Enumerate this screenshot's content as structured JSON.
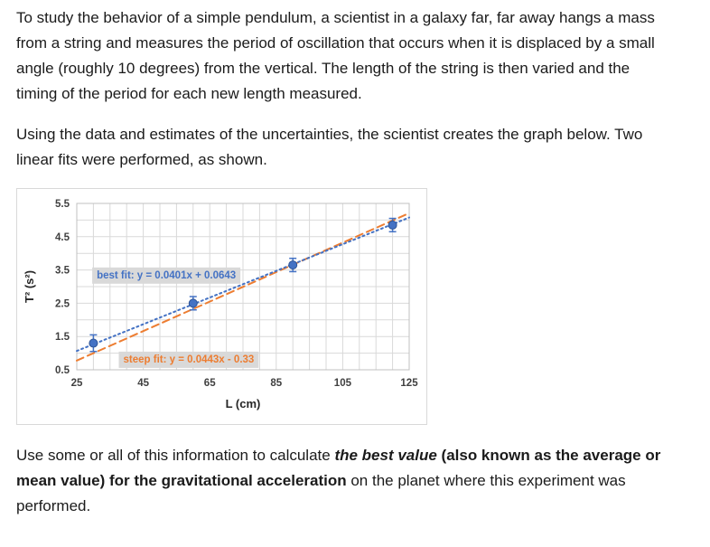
{
  "document": {
    "paragraph1": "To study the behavior of a simple pendulum, a scientist in a galaxy far, far away hangs a mass from a string and measures the period of oscillation that occurs when it is displaced by a small angle (roughly 10 degrees) from the vertical.  The length of the string is then varied and the timing of the period for each new length measured.",
    "paragraph2": "Using the data and estimates of the uncertainties, the scientist creates the graph below. Two linear fits were performed, as shown.",
    "paragraph3": {
      "part1": "Use some or all of this information to calculate ",
      "part2": "the best value",
      "part3": " (also known as the average or mean value) for the gravitational acceleration",
      "part4": " on the planet where this experiment was performed."
    }
  },
  "chart_data": {
    "type": "scatter",
    "title": "",
    "xlabel": "L (cm)",
    "ylabel": "T² (s²)",
    "xlim": [
      25,
      125
    ],
    "ylim": [
      0.5,
      5.5
    ],
    "xticks": [
      25,
      45,
      65,
      85,
      105,
      125
    ],
    "yticks": [
      0.5,
      1.5,
      2.5,
      3.5,
      4.5,
      5.5
    ],
    "x_minor_step": 5,
    "y_minor_step": 0.5,
    "grid": true,
    "grid_color": "#d9d9d9",
    "axis_text_color": "#404040",
    "points": {
      "x": [
        30,
        60,
        90,
        120
      ],
      "y": [
        1.3,
        2.5,
        3.65,
        4.85
      ],
      "yerr": [
        0.25,
        0.2,
        0.2,
        0.2
      ],
      "color": "#4472c4",
      "edge_color": "#2f5597"
    },
    "fits": [
      {
        "name": "best-fit",
        "label": "best fit: y = 0.0401x + 0.0643",
        "slope": 0.0401,
        "intercept": 0.0643,
        "color": "#4472c4",
        "dash": "2 3.5",
        "label_pos": {
          "x": 31,
          "y": 3.25
        }
      },
      {
        "name": "steep-fit",
        "label": "steep fit: y = 0.0443x - 0.33",
        "slope": 0.0443,
        "intercept": -0.33,
        "color": "#ed7d31",
        "dash": "8 5",
        "label_pos": {
          "x": 39,
          "y": 0.72
        }
      }
    ],
    "label_bg": "#d9d9d9"
  }
}
